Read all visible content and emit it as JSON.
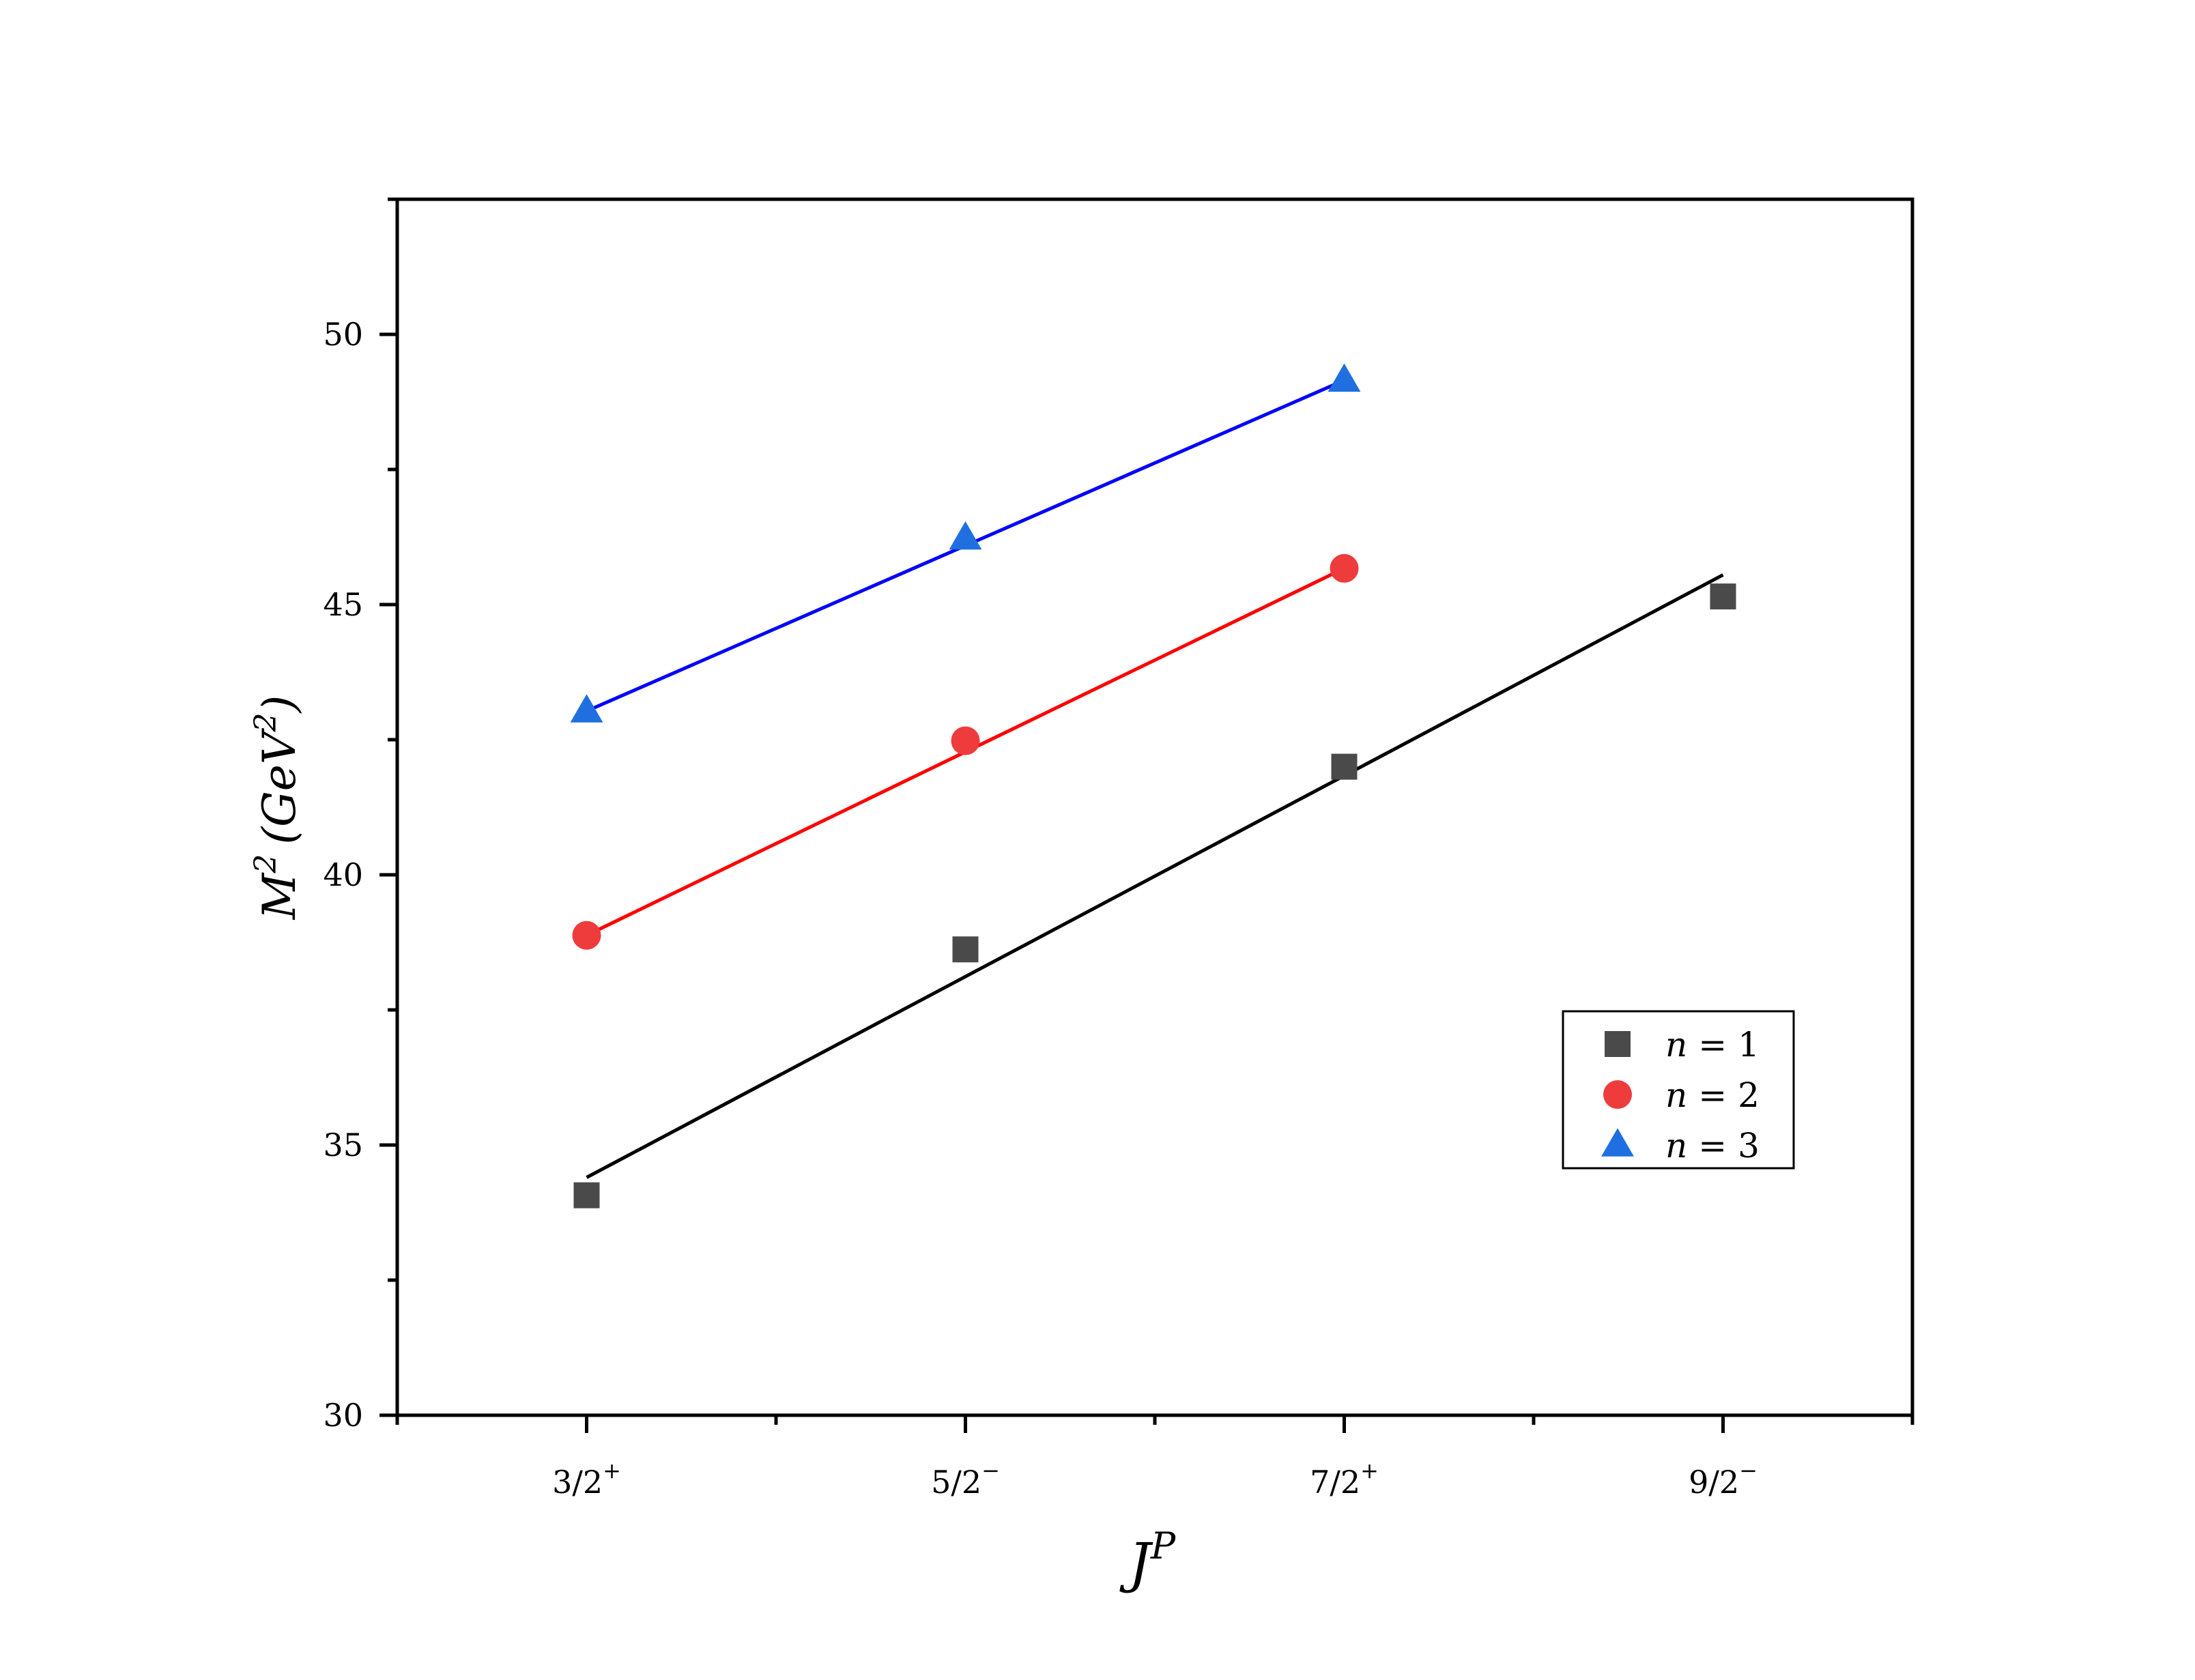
{
  "chart_data": {
    "type": "scatter",
    "title": "",
    "xlabel": "J",
    "xlabel_sup": "P",
    "ylabel": "M",
    "ylabel_sup": "2",
    "ylabel_unit": "(GeV",
    "ylabel_unit_sup": "2",
    "ylabel_unit_close": ")",
    "xlim": [
      0.5,
      4.5
    ],
    "ylim": [
      30,
      52.5
    ],
    "x_ticks": [
      {
        "x": 1,
        "num": "3/2",
        "sup": "+"
      },
      {
        "x": 2,
        "num": "5/2",
        "sup": "−"
      },
      {
        "x": 3,
        "num": "7/2",
        "sup": "+"
      },
      {
        "x": 4,
        "num": "9/2",
        "sup": "−"
      }
    ],
    "y_ticks": [
      30,
      35,
      40,
      45,
      50
    ],
    "grid": false,
    "legend_position": "lower-right",
    "series": [
      {
        "name": "n = 1",
        "label_var": "n",
        "label_eq": "=",
        "label_num": "1",
        "marker": "square",
        "color": "#4a4a4a",
        "line_color": "#000000",
        "x": [
          1,
          2,
          3,
          4
        ],
        "y": [
          34.07,
          38.62,
          42.0,
          45.15
        ],
        "fit": [
          [
            1,
            34.4
          ],
          [
            4,
            45.55
          ]
        ]
      },
      {
        "name": "n = 2",
        "label_var": "n",
        "label_eq": "=",
        "label_num": "2",
        "marker": "circle",
        "color": "#ee3b3b",
        "line_color": "#ff0000",
        "x": [
          1,
          2,
          3
        ],
        "y": [
          38.88,
          42.48,
          45.67
        ],
        "fit": [
          [
            1,
            38.88
          ],
          [
            3,
            45.67
          ]
        ]
      },
      {
        "name": "n = 3",
        "label_var": "n",
        "label_eq": "=",
        "label_num": "3",
        "marker": "triangle",
        "color": "#1f6fe0",
        "line_color": "#0000ff",
        "x": [
          1,
          2,
          3
        ],
        "y": [
          43.03,
          46.23,
          49.15
        ],
        "fit": [
          [
            1,
            43.03
          ],
          [
            3,
            49.15
          ]
        ]
      }
    ]
  }
}
